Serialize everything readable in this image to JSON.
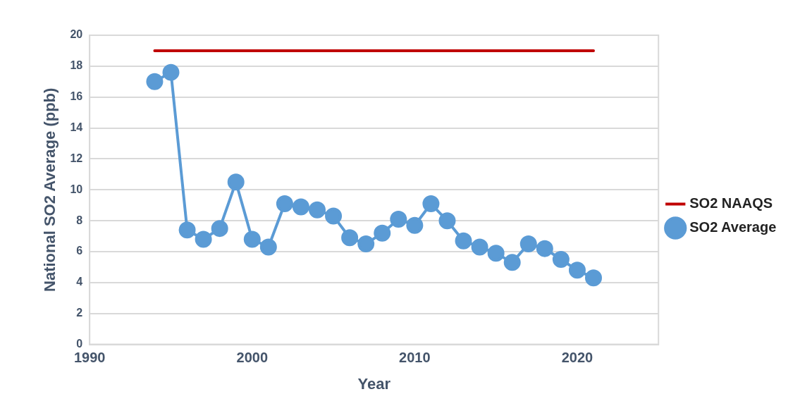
{
  "chart_data": {
    "type": "line",
    "xlabel": "Year",
    "ylabel": "National SO2 Average (ppb)",
    "xlim": [
      1990,
      2025
    ],
    "xticks": [
      1990,
      2000,
      2010,
      2020
    ],
    "ylim": [
      0,
      20
    ],
    "yticks": [
      0,
      2,
      4,
      6,
      8,
      10,
      12,
      14,
      16,
      18,
      20
    ],
    "grid": "y",
    "legend": "right",
    "line_style": "solid",
    "series": [
      {
        "name": "SO2 NAAQS",
        "color": "#c00000",
        "marker": "none",
        "x": [
          1994,
          2021
        ],
        "values": [
          19,
          19
        ]
      },
      {
        "name": "SO2 Average",
        "color": "#5b9bd5",
        "marker": "circle",
        "x": [
          1994,
          1995,
          1996,
          1997,
          1998,
          1999,
          2000,
          2001,
          2002,
          2003,
          2004,
          2005,
          2006,
          2007,
          2008,
          2009,
          2010,
          2011,
          2012,
          2013,
          2014,
          2015,
          2016,
          2017,
          2018,
          2019,
          2020,
          2021
        ],
        "values": [
          17.0,
          17.6,
          7.4,
          6.8,
          7.5,
          10.5,
          6.8,
          6.3,
          9.1,
          8.9,
          8.7,
          8.3,
          6.9,
          6.5,
          7.2,
          8.1,
          7.7,
          9.1,
          8.0,
          6.7,
          6.3,
          5.9,
          5.3,
          6.5,
          6.2,
          5.5,
          4.8,
          4.3
        ]
      }
    ]
  }
}
